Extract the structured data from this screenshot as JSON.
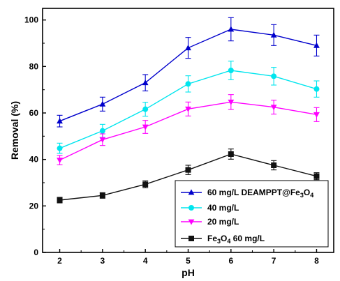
{
  "chart_data": {
    "type": "line",
    "xlabel": "pH",
    "ylabel": "Removal (%)",
    "xlim": [
      1.6,
      8.4
    ],
    "ylim": [
      0,
      105
    ],
    "x": [
      2,
      3,
      4,
      5,
      6,
      7,
      8
    ],
    "x_ticks": [
      "2",
      "3",
      "4",
      "5",
      "6",
      "7",
      "8"
    ],
    "y_ticks": [
      "0",
      "20",
      "40",
      "60",
      "80",
      "100"
    ],
    "grid": false,
    "legend_position": "bottom-right",
    "series": [
      {
        "legend_main": "60 mg/L DEAMPPT@Fe",
        "legend_sub": "3",
        "legend_tail": "O",
        "legend_sub2": "4",
        "legend_after": "",
        "marker": "triangle-up",
        "color": "#0000cc",
        "values": [
          56.5,
          63.8,
          73,
          88,
          96,
          93.5,
          89
        ],
        "errors": [
          2.5,
          3,
          3.5,
          4.5,
          5,
          4.5,
          4.5
        ]
      },
      {
        "legend_main": "40 mg/L",
        "legend_sub": "",
        "legend_tail": "",
        "legend_sub2": "",
        "legend_after": "",
        "marker": "circle",
        "color": "#00e5ee",
        "values": [
          44.8,
          52.3,
          61.6,
          72.5,
          78.3,
          75.8,
          70.3
        ],
        "errors": [
          2.2,
          2.8,
          3,
          3.5,
          4,
          3.8,
          3.5
        ]
      },
      {
        "legend_main": "20 mg/L",
        "legend_sub": "",
        "legend_tail": "",
        "legend_sub2": "",
        "legend_after": "",
        "marker": "triangle-down",
        "color": "#ff00ff",
        "values": [
          39.7,
          48.5,
          54,
          61.7,
          64.7,
          62.5,
          59.3
        ],
        "errors": [
          2,
          2.5,
          2.8,
          3,
          3.2,
          3,
          3
        ]
      },
      {
        "legend_main": "Fe",
        "legend_sub": "3",
        "legend_tail": "O",
        "legend_sub2": "4",
        "legend_after": " 60 mg/L",
        "marker": "square",
        "color": "#111111",
        "values": [
          22.5,
          24.5,
          29.3,
          35.5,
          42.3,
          37.5,
          32.8
        ],
        "errors": [
          1.2,
          1.2,
          1.5,
          2,
          2.2,
          2,
          1.5
        ]
      }
    ]
  }
}
